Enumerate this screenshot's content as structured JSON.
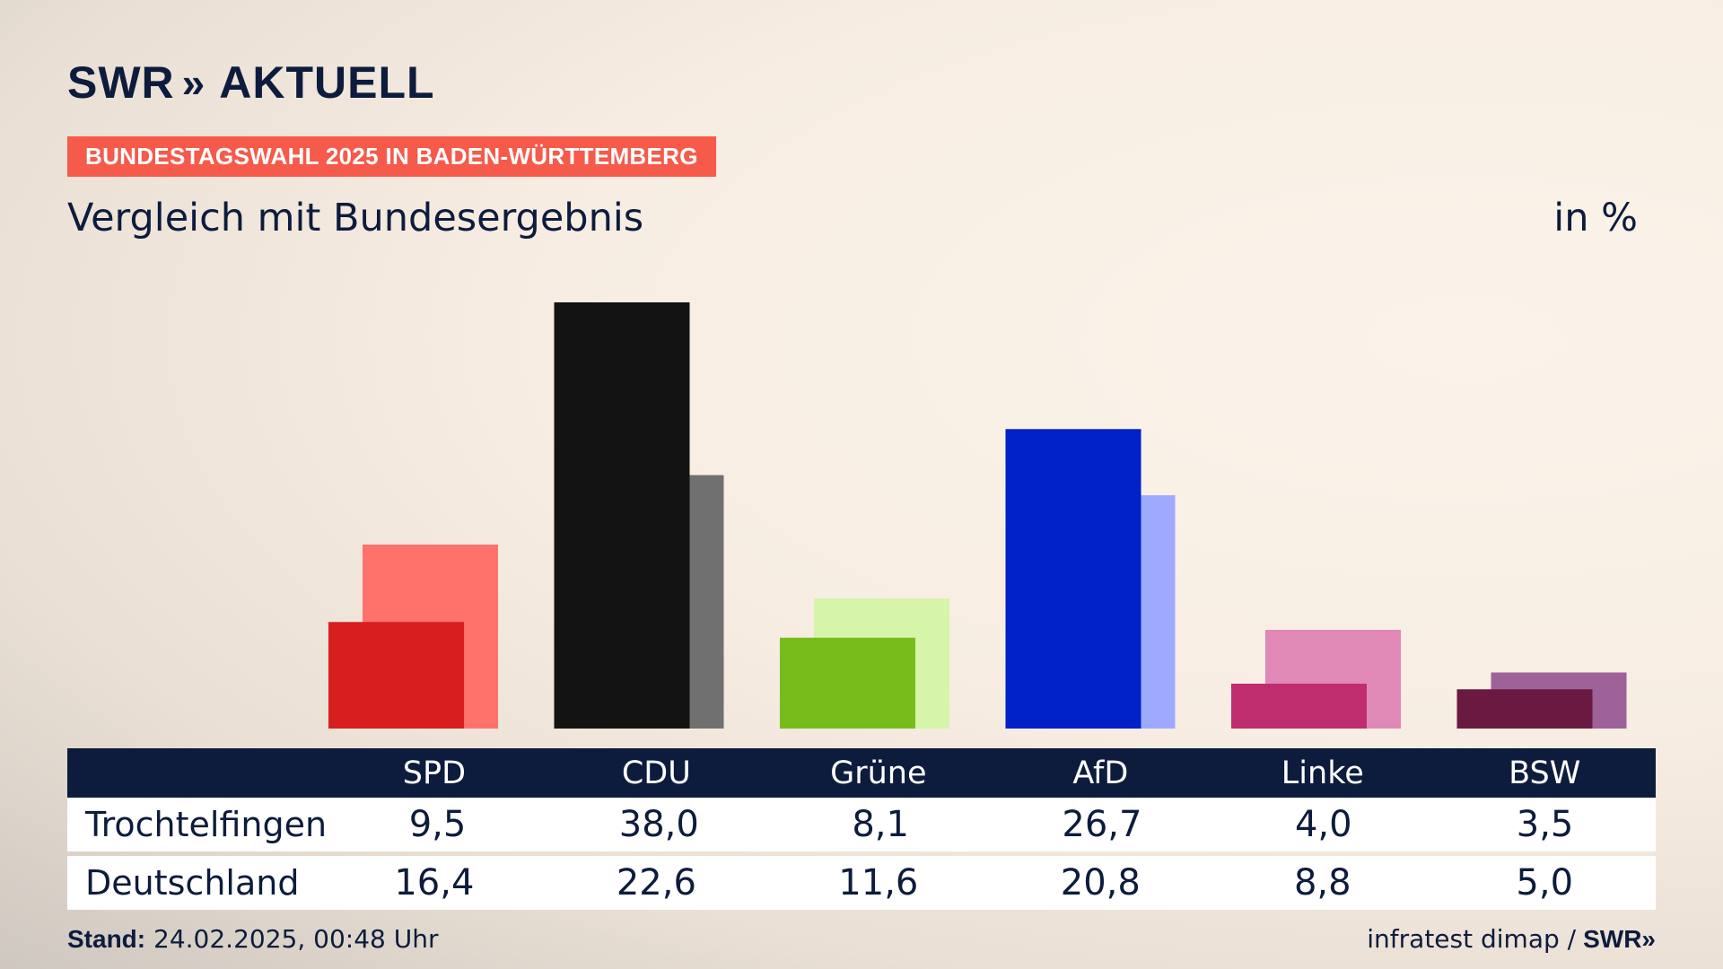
{
  "header": {
    "logo_main": "SWR",
    "logo_chevrons": "»",
    "logo_secondary": "AKTUELL",
    "badge": "BUNDESTAGSWAHL 2025 IN BADEN-WÜRTTEMBERG",
    "subtitle": "Vergleich mit Bundesergebnis",
    "unit": "in %"
  },
  "table": {
    "rows": [
      {
        "label": "Trochtelfingen",
        "values": [
          "9,5",
          "38,0",
          "8,1",
          "26,7",
          "4,0",
          "3,5"
        ]
      },
      {
        "label": "Deutschland",
        "values": [
          "16,4",
          "22,6",
          "11,6",
          "20,8",
          "8,8",
          "5,0"
        ]
      }
    ]
  },
  "footer": {
    "stand_label": "Stand:",
    "stand_value": "24.02.2025, 00:48 Uhr",
    "source": "infratest dimap /",
    "source_logo": "SWR»"
  },
  "chart_data": {
    "type": "bar",
    "title": "Vergleich mit Bundesergebnis",
    "ylabel": "in %",
    "categories": [
      "SPD",
      "CDU",
      "Grüne",
      "AfD",
      "Linke",
      "BSW"
    ],
    "series": [
      {
        "name": "Trochtelfingen",
        "values": [
          9.5,
          38.0,
          8.1,
          26.7,
          4.0,
          3.5
        ],
        "colors": [
          "#d71f20",
          "#131313",
          "#78bc1c",
          "#0020c8",
          "#bf2d6f",
          "#6a1941"
        ]
      },
      {
        "name": "Deutschland",
        "values": [
          16.4,
          22.6,
          11.6,
          20.8,
          8.8,
          5.0
        ],
        "colors": [
          "#ff716b",
          "#717070",
          "#d6f5a8",
          "#9eaaff",
          "#e089b6",
          "#9e6299"
        ]
      }
    ],
    "ylim": [
      0,
      38
    ]
  }
}
